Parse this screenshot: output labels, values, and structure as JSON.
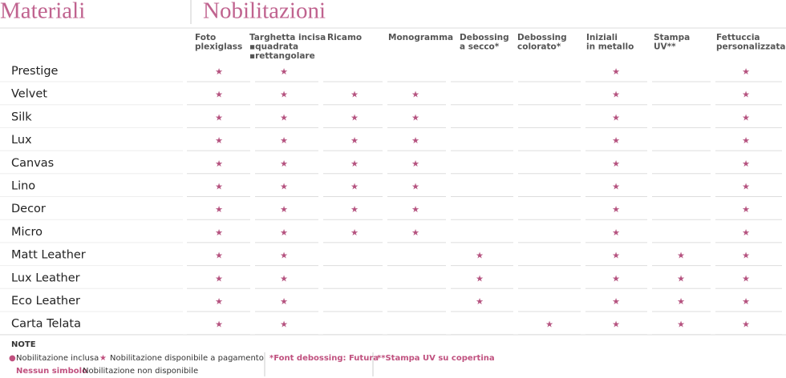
{
  "header": {
    "materials_title": "Materiali",
    "enhancements_title": "Nobilitazioni"
  },
  "columns": [
    {
      "lines": [
        "Foto",
        "plexiglass"
      ]
    },
    {
      "lines": [
        "Targhetta incisa",
        "▪quadrata",
        "▪rettangolare"
      ]
    },
    {
      "lines": [
        "Ricamo"
      ]
    },
    {
      "lines": [
        "Monogramma"
      ]
    },
    {
      "lines": [
        "Debossing",
        "a secco*"
      ]
    },
    {
      "lines": [
        "Debossing",
        "colorato*"
      ]
    },
    {
      "lines": [
        "Iniziali",
        "in metallo"
      ]
    },
    {
      "lines": [
        "Stampa",
        "UV**"
      ]
    },
    {
      "lines": [
        "Fettuccia",
        "personalizzata"
      ]
    }
  ],
  "rows": [
    {
      "name": "Prestige",
      "cells": [
        "★",
        "★",
        null,
        null,
        null,
        null,
        "★",
        null,
        "★"
      ]
    },
    {
      "name": "Velvet",
      "cells": [
        "★",
        "★",
        "★",
        "★",
        null,
        null,
        "★",
        null,
        "★"
      ]
    },
    {
      "name": "Silk",
      "cells": [
        "★",
        "★",
        "★",
        "★",
        null,
        null,
        "★",
        null,
        "★"
      ]
    },
    {
      "name": "Lux",
      "cells": [
        "★",
        "★",
        "★",
        "★",
        null,
        null,
        "★",
        null,
        "★"
      ]
    },
    {
      "name": "Canvas",
      "cells": [
        "★",
        "★",
        "★",
        "★",
        null,
        null,
        "★",
        null,
        "★"
      ]
    },
    {
      "name": "Lino",
      "cells": [
        "★",
        "★",
        "★",
        "★",
        null,
        null,
        "★",
        null,
        "★"
      ]
    },
    {
      "name": "Decor",
      "cells": [
        "★",
        "★",
        "★",
        "★",
        null,
        null,
        "★",
        null,
        "★"
      ]
    },
    {
      "name": "Micro",
      "cells": [
        "★",
        "★",
        "★",
        "★",
        null,
        null,
        "★",
        null,
        "★"
      ]
    },
    {
      "name": "Matt Leather",
      "cells": [
        "★",
        "★",
        null,
        null,
        "★",
        null,
        "★",
        "★",
        "★"
      ]
    },
    {
      "name": "Lux Leather",
      "cells": [
        "★",
        "★",
        null,
        null,
        "★",
        null,
        "★",
        "★",
        "★"
      ]
    },
    {
      "name": "Eco Leather",
      "cells": [
        "★",
        "★",
        null,
        null,
        "★",
        null,
        "★",
        "★",
        "★"
      ]
    },
    {
      "name": "Carta Telata",
      "cells": [
        "★",
        "★",
        null,
        null,
        null,
        "★",
        "★",
        "★",
        "★"
      ]
    }
  ],
  "notes": {
    "title": "NOTE",
    "legend": [
      {
        "symbol": "●",
        "text": "Nobilitazione inclusa"
      },
      {
        "symbol": "★",
        "text": "Nobilitazione disponibile a pagamento"
      },
      {
        "symbol": "Nessun simbolo",
        "text": "Nobilitazione non disponibile"
      }
    ],
    "footnotes": [
      "*Font debossing: Futura",
      "**Stampa UV su copertina"
    ]
  }
}
